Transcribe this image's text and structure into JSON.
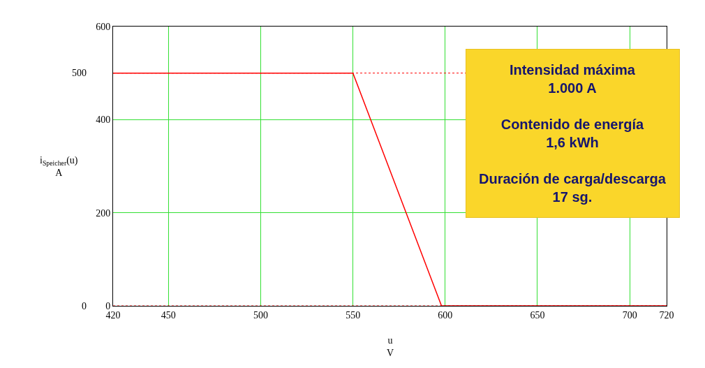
{
  "chart_data": {
    "type": "line",
    "x": [
      420,
      550,
      598,
      720
    ],
    "series": [
      {
        "color": "#ff0000",
        "values": [
          500,
          500,
          0,
          0
        ]
      }
    ],
    "xlim": [
      420,
      720
    ],
    "xticks": [
      420,
      450,
      500,
      550,
      600,
      650,
      700,
      720
    ],
    "ylim": [
      0,
      600
    ],
    "yticks": [
      0,
      200,
      400,
      600
    ],
    "xlabel": "u\nV",
    "ylabel": "i$_{Speicher}$(u)\nA",
    "ref_lines": [
      {
        "axis": "y",
        "value": 500,
        "label": "500",
        "color": "#ff0000",
        "line_style": "dotted"
      },
      {
        "axis": "y",
        "value": 0,
        "label": "0",
        "color": "#ff0000",
        "line_style": "dotted"
      }
    ],
    "annotations": [
      "Intensidad máxima\n1.000 A\n\nContenido de energía\n1,6 kWh\n\nDuración de carga/descarga\n17 sg."
    ],
    "grid": true,
    "marker": "none",
    "line_style": "solid"
  }
}
